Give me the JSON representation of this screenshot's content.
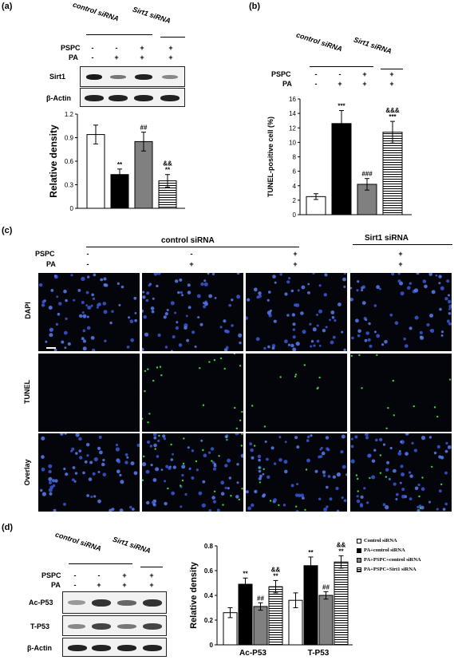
{
  "panel_a": {
    "label": "(a)",
    "groups": [
      "control siRNA",
      "Sirt1 siRNA"
    ],
    "rows": [
      {
        "name": "PSPC",
        "signs": [
          "-",
          "-",
          "+",
          "+"
        ]
      },
      {
        "name": "PA",
        "signs": [
          "-",
          "+",
          "+",
          "+"
        ]
      }
    ],
    "blots": [
      "Sirt1",
      "β-Actin"
    ]
  },
  "panel_b": {
    "label": "(b)",
    "groups": [
      "control siRNA",
      "Sirt1 siRNA"
    ],
    "rows": [
      {
        "name": "PSPC",
        "signs": [
          "-",
          "-",
          "+",
          "+"
        ]
      },
      {
        "name": "PA",
        "signs": [
          "-",
          "+",
          "+",
          "+"
        ]
      }
    ]
  },
  "panel_c": {
    "label": "(c)",
    "groups": [
      "control siRNA",
      "Sirt1 siRNA"
    ],
    "rows": [
      {
        "name": "PSPC",
        "signs": [
          "-",
          "-",
          "+",
          "+"
        ]
      },
      {
        "name": "PA",
        "signs": [
          "-",
          "+",
          "+",
          "+"
        ]
      }
    ],
    "row_labels": [
      "DAPI",
      "TUNEL",
      "Overlay"
    ]
  },
  "panel_d": {
    "label": "(d)",
    "groups": [
      "control siRNA",
      "Sirt1 siRNA"
    ],
    "rows": [
      {
        "name": "PSPC",
        "signs": [
          "-",
          "-",
          "+",
          "+"
        ]
      },
      {
        "name": "PA",
        "signs": [
          "-",
          "+",
          "+",
          "+"
        ]
      }
    ],
    "blots": [
      "Ac-P53",
      "T-P53",
      "β-Actin"
    ],
    "legend": [
      "Control siRNA",
      "PA+control siRNA",
      "PA+PSPC+control siRNA",
      "PA+PSPC+Sirt1 siRNA"
    ]
  },
  "chart_data": [
    {
      "type": "bar",
      "ylabel": "Relative density",
      "ylim": [
        0,
        1.2
      ],
      "yticks": [
        "0",
        "0.3",
        "0.6",
        "0.9",
        "1.2"
      ],
      "series": [
        {
          "values": [
            0.94,
            0.43,
            0.85,
            0.35
          ],
          "errors": [
            0.12,
            0.07,
            0.12,
            0.08
          ]
        }
      ],
      "annotations": [
        "",
        "**",
        "##",
        "&&\n**"
      ],
      "fills": [
        "white",
        "black",
        "gray",
        "hatch"
      ]
    },
    {
      "type": "bar",
      "ylabel": "TUNEL-positive cell (%)",
      "ylim": [
        0,
        16
      ],
      "yticks": [
        "0",
        "2",
        "4",
        "6",
        "8",
        "10",
        "12",
        "14",
        "16"
      ],
      "series": [
        {
          "values": [
            2.5,
            12.6,
            4.2,
            11.4
          ],
          "errors": [
            0.4,
            1.8,
            0.8,
            1.5
          ]
        }
      ],
      "annotations": [
        "",
        "***",
        "###",
        "&&&\n***"
      ],
      "fills": [
        "white",
        "black",
        "gray",
        "hatch"
      ]
    },
    {
      "type": "bar",
      "ylabel": "Relative density",
      "ylim": [
        0,
        0.8
      ],
      "yticks": [
        "0",
        "0.2",
        "0.4",
        "0.6",
        "0.8"
      ],
      "categories": [
        "Ac-P53",
        "T-P53"
      ],
      "series": [
        {
          "name": "Control siRNA",
          "values": [
            0.26,
            0.36
          ],
          "errors": [
            0.04,
            0.06
          ]
        },
        {
          "name": "PA+control siRNA",
          "values": [
            0.49,
            0.64
          ],
          "errors": [
            0.05,
            0.07
          ]
        },
        {
          "name": "PA+PSPC+control siRNA",
          "values": [
            0.31,
            0.4
          ],
          "errors": [
            0.03,
            0.03
          ]
        },
        {
          "name": "PA+PSPC+Sirt1 siRNA",
          "values": [
            0.47,
            0.67
          ],
          "errors": [
            0.05,
            0.05
          ]
        }
      ],
      "annotations": [
        [
          "",
          "**",
          "##",
          "&&\n**"
        ],
        [
          "",
          "**",
          "##",
          "&&\n**"
        ]
      ]
    }
  ]
}
